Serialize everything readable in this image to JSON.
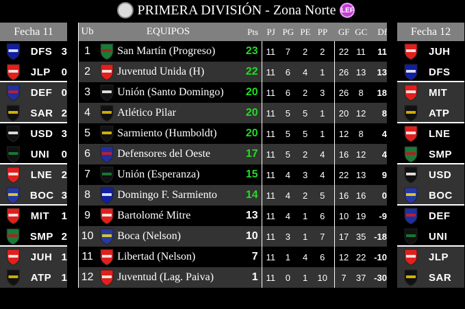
{
  "title": "PRIMERA DIVISIÓN - Zona Norte",
  "colors": {
    "header_bg": "#808080",
    "alt_row": "#333333",
    "leader_points": "#22dd22"
  },
  "crests": {
    "SMP": [
      "#1a7a3a",
      "#c01818"
    ],
    "JUH": [
      "#e0201c",
      "#ffffff"
    ],
    "USD": [
      "#111111",
      "#ffffff"
    ],
    "ATP": [
      "#111111",
      "#f0c800"
    ],
    "SAR": [
      "#111111",
      "#f0d000"
    ],
    "DEF": [
      "#2030a0",
      "#d02020"
    ],
    "LNE": [
      "#e0201c",
      "#ffffff"
    ],
    "DFS": [
      "#1020a0",
      "#ffffff"
    ],
    "MIT": [
      "#e0201c",
      "#ffffff"
    ],
    "BOC": [
      "#2838a0",
      "#f0e020"
    ],
    "LIB": [
      "#e0201c",
      "#ffffff"
    ],
    "JLP": [
      "#e0201c",
      "#ffffff"
    ],
    "UNI": [
      "#111111",
      "#1a8a3a"
    ]
  },
  "left": {
    "header": "Fecha 11",
    "matches": [
      [
        {
          "code": "DFS",
          "score": "3"
        },
        {
          "code": "JLP",
          "score": "0"
        }
      ],
      [
        {
          "code": "DEF",
          "score": "0"
        },
        {
          "code": "SAR",
          "score": "2"
        }
      ],
      [
        {
          "code": "USD",
          "score": "3"
        },
        {
          "code": "UNI",
          "score": "0"
        }
      ],
      [
        {
          "code": "LNE",
          "score": "2"
        },
        {
          "code": "BOC",
          "score": "3"
        }
      ],
      [
        {
          "code": "MIT",
          "score": "1"
        },
        {
          "code": "SMP",
          "score": "2"
        }
      ],
      [
        {
          "code": "JUH",
          "score": "1"
        },
        {
          "code": "ATP",
          "score": "1"
        }
      ]
    ]
  },
  "right": {
    "header": "Fecha 12",
    "matches": [
      [
        {
          "code": "JUH"
        },
        {
          "code": "DFS"
        }
      ],
      [
        {
          "code": "MIT"
        },
        {
          "code": "ATP"
        }
      ],
      [
        {
          "code": "LNE"
        },
        {
          "code": "SMP"
        }
      ],
      [
        {
          "code": "USD"
        },
        {
          "code": "BOC"
        }
      ],
      [
        {
          "code": "DEF"
        },
        {
          "code": "UNI"
        }
      ],
      [
        {
          "code": "JLP"
        },
        {
          "code": "SAR"
        }
      ]
    ]
  },
  "table": {
    "headers": [
      "Ub",
      "EQUIPOS",
      "Pts",
      "PJ",
      "PG",
      "PE",
      "PP",
      "GF",
      "GC",
      "Df"
    ],
    "rows": [
      {
        "pos": "1",
        "team": "San Martín (Progreso)",
        "crest": "SMP",
        "pts": "23",
        "green": true,
        "pj": "11",
        "pg": "7",
        "pe": "2",
        "pp": "2",
        "gf": "22",
        "gc": "11",
        "df": "11"
      },
      {
        "pos": "2",
        "team": "Juventud Unida (H)",
        "crest": "JUH",
        "pts": "22",
        "green": true,
        "pj": "11",
        "pg": "6",
        "pe": "4",
        "pp": "1",
        "gf": "26",
        "gc": "13",
        "df": "13"
      },
      {
        "pos": "3",
        "team": "Unión (Santo Domingo)",
        "crest": "USD",
        "pts": "20",
        "green": true,
        "pj": "11",
        "pg": "6",
        "pe": "2",
        "pp": "3",
        "gf": "26",
        "gc": "8",
        "df": "18"
      },
      {
        "pos": "4",
        "team": "Atlético Pilar",
        "crest": "ATP",
        "pts": "20",
        "green": true,
        "pj": "11",
        "pg": "5",
        "pe": "5",
        "pp": "1",
        "gf": "20",
        "gc": "12",
        "df": "8"
      },
      {
        "pos": "5",
        "team": "Sarmiento (Humboldt)",
        "crest": "SAR",
        "pts": "20",
        "green": true,
        "pj": "11",
        "pg": "5",
        "pe": "5",
        "pp": "1",
        "gf": "12",
        "gc": "8",
        "df": "4"
      },
      {
        "pos": "6",
        "team": "Defensores del Oeste",
        "crest": "DEF",
        "pts": "17",
        "green": true,
        "pj": "11",
        "pg": "5",
        "pe": "2",
        "pp": "4",
        "gf": "16",
        "gc": "12",
        "df": "4"
      },
      {
        "pos": "7",
        "team": "Unión (Esperanza)",
        "crest": "UNI",
        "pts": "15",
        "green": true,
        "pj": "11",
        "pg": "4",
        "pe": "3",
        "pp": "4",
        "gf": "22",
        "gc": "13",
        "df": "9"
      },
      {
        "pos": "8",
        "team": "Domingo F. Sarmiento",
        "crest": "DFS",
        "pts": "14",
        "green": true,
        "pj": "11",
        "pg": "4",
        "pe": "2",
        "pp": "5",
        "gf": "16",
        "gc": "16",
        "df": "0"
      },
      {
        "pos": "9",
        "team": "Bartolomé Mitre",
        "crest": "MIT",
        "pts": "13",
        "green": false,
        "pj": "11",
        "pg": "4",
        "pe": "1",
        "pp": "6",
        "gf": "10",
        "gc": "19",
        "df": "-9"
      },
      {
        "pos": "10",
        "team": "Boca (Nelson)",
        "crest": "BOC",
        "pts": "10",
        "green": false,
        "pj": "11",
        "pg": "3",
        "pe": "1",
        "pp": "7",
        "gf": "17",
        "gc": "35",
        "df": "-18"
      },
      {
        "pos": "11",
        "team": "Libertad (Nelson)",
        "crest": "LIB",
        "pts": "7",
        "green": false,
        "pj": "11",
        "pg": "1",
        "pe": "4",
        "pp": "6",
        "gf": "12",
        "gc": "22",
        "df": "-10"
      },
      {
        "pos": "12",
        "team": "Juventud (Lag. Paiva)",
        "crest": "JLP",
        "pts": "1",
        "green": false,
        "pj": "11",
        "pg": "0",
        "pe": "1",
        "pp": "10",
        "gf": "7",
        "gc": "37",
        "df": "-30"
      }
    ]
  }
}
